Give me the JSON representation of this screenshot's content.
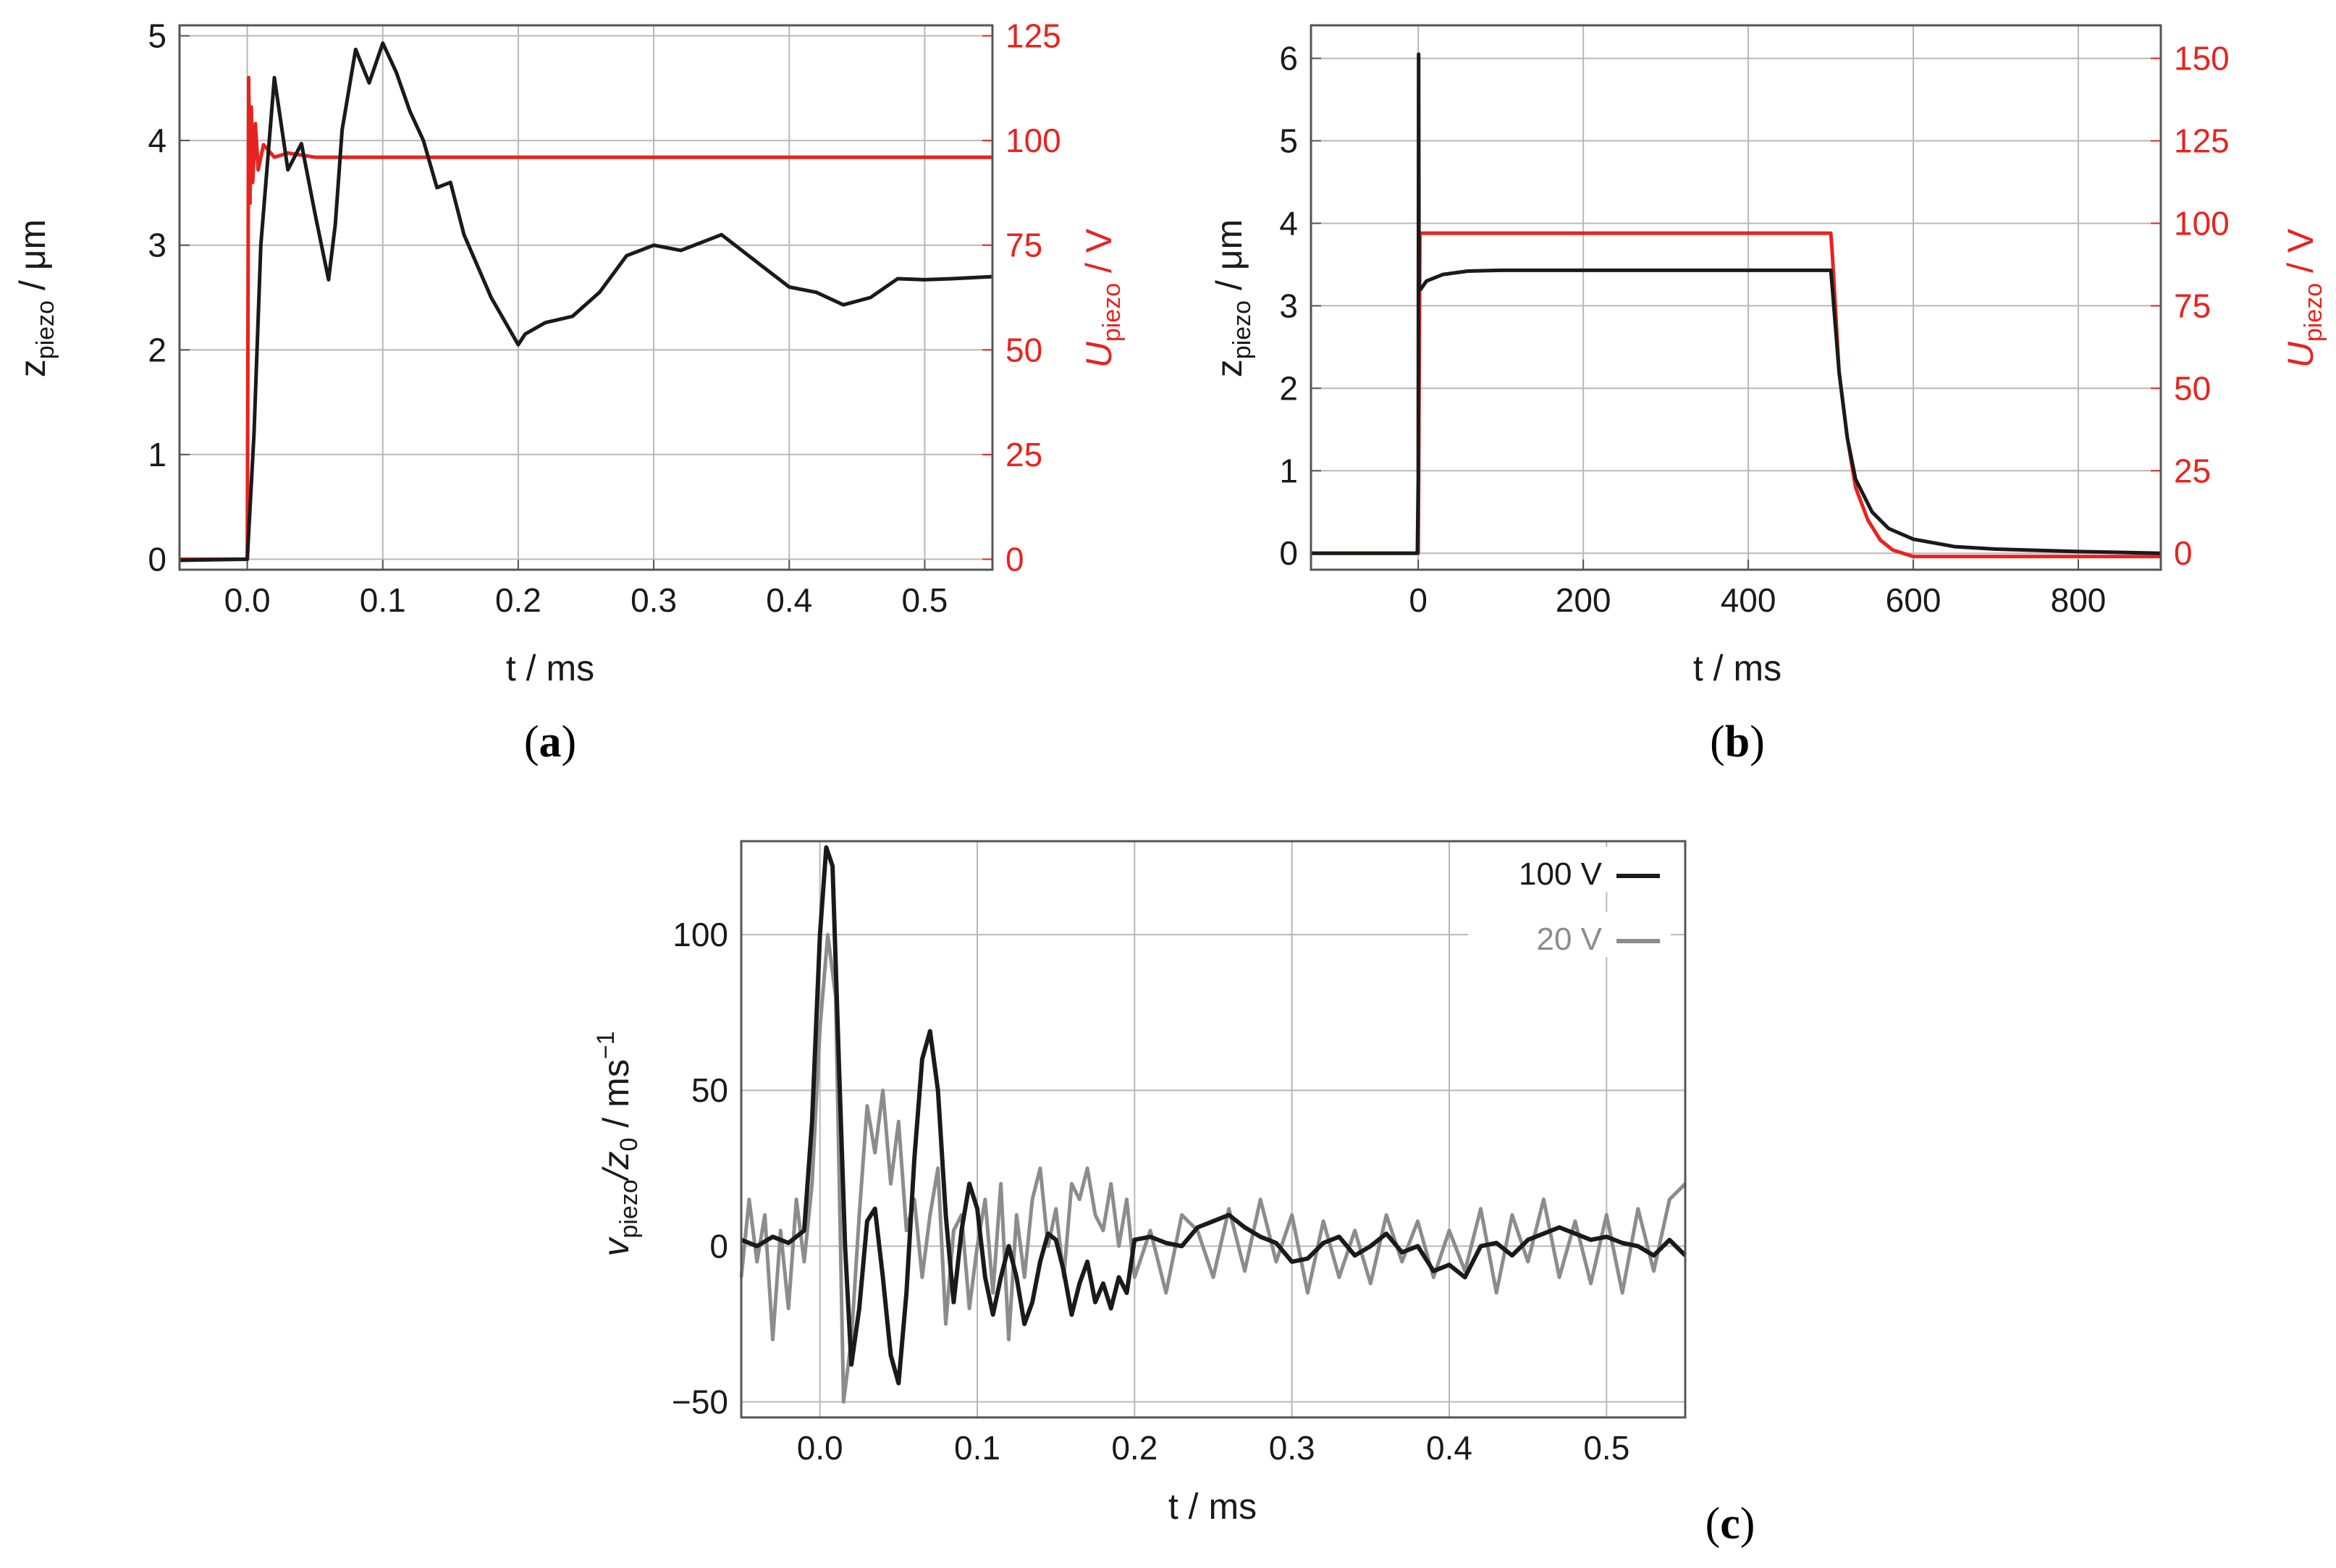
{
  "panels": {
    "a": {
      "letter": "a",
      "open": "(",
      "close": ")"
    },
    "b": {
      "letter": "b",
      "open": "(",
      "close": ")"
    },
    "c": {
      "letter": "c",
      "open": "(",
      "close": ")"
    }
  },
  "colors": {
    "black_series": "#1a1a1a",
    "red_series": "#e8231f",
    "gray_series": "#8c8c8c",
    "grid": "#b8b8b8"
  },
  "chart_data": [
    {
      "id": "a",
      "type": "line",
      "xlabel": "t / ms",
      "ylabel_left": {
        "main": "z",
        "sub": "piezo",
        "unit": " / μm"
      },
      "ylabel_right": {
        "main": "U",
        "sub": "piezo",
        "unit": " / V"
      },
      "xlim": [
        -0.05,
        0.55
      ],
      "ylim_left": [
        -0.1,
        5.1
      ],
      "ylim_right": [
        -2.5,
        127.5
      ],
      "xticks": [
        0.0,
        0.1,
        0.2,
        0.3,
        0.4,
        0.5
      ],
      "xtick_labels": [
        "0.0",
        "0.1",
        "0.2",
        "0.3",
        "0.4",
        "0.5"
      ],
      "yticks_left": [
        0,
        1,
        2,
        3,
        4,
        5
      ],
      "ytick_labels_left": [
        "0",
        "1",
        "2",
        "3",
        "4",
        "5"
      ],
      "yticks_right": [
        0,
        25,
        50,
        75,
        100,
        125
      ],
      "ytick_labels_right": [
        "0",
        "25",
        "50",
        "75",
        "100",
        "125"
      ],
      "grid": true,
      "series": [
        {
          "name": "z_piezo",
          "axis": "left",
          "color": "#1a1a1a",
          "x": [
            -0.05,
            0.0,
            0.005,
            0.01,
            0.02,
            0.03,
            0.04,
            0.05,
            0.06,
            0.065,
            0.07,
            0.08,
            0.09,
            0.1,
            0.11,
            0.12,
            0.13,
            0.14,
            0.15,
            0.16,
            0.18,
            0.2,
            0.205,
            0.22,
            0.24,
            0.26,
            0.28,
            0.3,
            0.32,
            0.35,
            0.38,
            0.4,
            0.42,
            0.44,
            0.46,
            0.48,
            0.5,
            0.52,
            0.55
          ],
          "values": [
            -0.01,
            0.0,
            1.2,
            3.0,
            4.6,
            3.72,
            3.97,
            3.3,
            2.67,
            3.2,
            4.1,
            4.87,
            4.55,
            4.93,
            4.65,
            4.28,
            4.0,
            3.55,
            3.6,
            3.1,
            2.5,
            2.05,
            2.15,
            2.26,
            2.32,
            2.55,
            2.9,
            3.0,
            2.95,
            3.1,
            2.8,
            2.6,
            2.55,
            2.43,
            2.5,
            2.68,
            2.67,
            2.68,
            2.7
          ]
        },
        {
          "name": "U_piezo",
          "axis": "right",
          "color": "#e8231f",
          "x": [
            -0.05,
            0.0,
            0.001,
            0.002,
            0.003,
            0.004,
            0.006,
            0.008,
            0.012,
            0.02,
            0.03,
            0.05,
            0.1,
            0.55
          ],
          "values": [
            0,
            0,
            115,
            85,
            108,
            90,
            104,
            93,
            99,
            96,
            97,
            96,
            96,
            96
          ]
        }
      ]
    },
    {
      "id": "b",
      "type": "line",
      "xlabel": "t / ms",
      "ylabel_left": {
        "main": "z",
        "sub": "piezo",
        "unit": " / μm"
      },
      "ylabel_right": {
        "main": "U",
        "sub": "piezo",
        "unit": " / V"
      },
      "xlim": [
        -130,
        900
      ],
      "ylim_left": [
        -0.2,
        6.4
      ],
      "ylim_right": [
        -5,
        160
      ],
      "xticks": [
        0,
        200,
        400,
        600,
        800
      ],
      "xtick_labels": [
        "0",
        "200",
        "400",
        "600",
        "800"
      ],
      "yticks_left": [
        0,
        1,
        2,
        3,
        4,
        5,
        6
      ],
      "ytick_labels_left": [
        "0",
        "1",
        "2",
        "3",
        "4",
        "5",
        "6"
      ],
      "yticks_right": [
        0,
        25,
        50,
        75,
        100,
        125,
        150
      ],
      "ytick_labels_right": [
        "0",
        "25",
        "50",
        "75",
        "100",
        "125",
        "150"
      ],
      "grid": true,
      "series": [
        {
          "name": "z_piezo",
          "axis": "left",
          "color": "#1a1a1a",
          "x": [
            -130,
            -1,
            0,
            0.5,
            1,
            3,
            10,
            30,
            60,
            100,
            300,
            500,
            502,
            510,
            520,
            530,
            550,
            570,
            600,
            650,
            700,
            800,
            900
          ],
          "values": [
            0,
            0,
            0.9,
            6.05,
            3.25,
            3.2,
            3.3,
            3.38,
            3.42,
            3.43,
            3.43,
            3.43,
            3.2,
            2.2,
            1.4,
            0.9,
            0.5,
            0.3,
            0.17,
            0.08,
            0.05,
            0.02,
            0.0
          ]
        },
        {
          "name": "U_piezo",
          "axis": "right",
          "color": "#e8231f",
          "x": [
            -130,
            0,
            2,
            500,
            502,
            510,
            520,
            530,
            545,
            560,
            575,
            600,
            650,
            900
          ],
          "values": [
            0,
            0,
            97,
            97,
            90,
            55,
            35,
            20,
            10,
            4,
            1,
            -1,
            -1,
            -1
          ]
        }
      ]
    },
    {
      "id": "c",
      "type": "line",
      "xlabel": "t / ms",
      "ylabel": {
        "main": "v",
        "sub1": "piezo",
        "mid": "/z",
        "sub2": "0",
        "unit": " / ms",
        "sup": "−1"
      },
      "xlim": [
        -0.05,
        0.55
      ],
      "ylim": [
        -55,
        130
      ],
      "xticks": [
        0.0,
        0.1,
        0.2,
        0.3,
        0.4,
        0.5
      ],
      "xtick_labels": [
        "0.0",
        "0.1",
        "0.2",
        "0.3",
        "0.4",
        "0.5"
      ],
      "yticks": [
        -50,
        0,
        50,
        100
      ],
      "ytick_labels": [
        "−50",
        "0",
        "50",
        "100"
      ],
      "grid": true,
      "legend": {
        "position": "top-right",
        "entries": [
          {
            "label": "100 V",
            "color": "#1a1a1a"
          },
          {
            "label": "20 V",
            "color": "#8c8c8c"
          }
        ]
      },
      "series": [
        {
          "name": "100 V",
          "color": "#1a1a1a",
          "x": [
            -0.05,
            -0.04,
            -0.03,
            -0.02,
            -0.01,
            -0.005,
            0.0,
            0.004,
            0.008,
            0.012,
            0.016,
            0.02,
            0.025,
            0.03,
            0.035,
            0.04,
            0.045,
            0.05,
            0.055,
            0.06,
            0.065,
            0.07,
            0.075,
            0.08,
            0.085,
            0.09,
            0.095,
            0.1,
            0.105,
            0.11,
            0.115,
            0.12,
            0.125,
            0.13,
            0.135,
            0.14,
            0.145,
            0.15,
            0.155,
            0.16,
            0.165,
            0.17,
            0.175,
            0.18,
            0.185,
            0.19,
            0.195,
            0.2,
            0.21,
            0.22,
            0.23,
            0.24,
            0.25,
            0.26,
            0.27,
            0.28,
            0.29,
            0.3,
            0.31,
            0.32,
            0.33,
            0.34,
            0.35,
            0.36,
            0.37,
            0.38,
            0.39,
            0.4,
            0.41,
            0.42,
            0.43,
            0.44,
            0.45,
            0.46,
            0.47,
            0.48,
            0.49,
            0.5,
            0.51,
            0.52,
            0.53,
            0.54,
            0.55
          ],
          "values": [
            2,
            0,
            3,
            1,
            5,
            40,
            100,
            128,
            122,
            60,
            0,
            -38,
            -20,
            8,
            12,
            -10,
            -35,
            -44,
            -15,
            28,
            60,
            69,
            50,
            10,
            -18,
            5,
            20,
            12,
            -10,
            -22,
            -10,
            0,
            -10,
            -25,
            -18,
            -5,
            4,
            2,
            -8,
            -22,
            -12,
            -5,
            -18,
            -12,
            -20,
            -10,
            -15,
            2,
            3,
            1,
            0,
            6,
            8,
            10,
            6,
            3,
            1,
            -5,
            -4,
            1,
            3,
            -3,
            0,
            4,
            -2,
            0,
            -8,
            -6,
            -10,
            0,
            1,
            -3,
            2,
            4,
            6,
            4,
            2,
            3,
            1,
            0,
            -3,
            2,
            -3
          ]
        },
        {
          "name": "20 V",
          "color": "#8c8c8c",
          "x": [
            -0.05,
            -0.045,
            -0.04,
            -0.035,
            -0.03,
            -0.025,
            -0.02,
            -0.015,
            -0.01,
            -0.005,
            0.0,
            0.005,
            0.01,
            0.015,
            0.02,
            0.025,
            0.03,
            0.035,
            0.04,
            0.045,
            0.05,
            0.055,
            0.06,
            0.065,
            0.07,
            0.075,
            0.08,
            0.085,
            0.09,
            0.095,
            0.1,
            0.105,
            0.11,
            0.115,
            0.12,
            0.125,
            0.13,
            0.135,
            0.14,
            0.145,
            0.15,
            0.155,
            0.16,
            0.165,
            0.17,
            0.175,
            0.18,
            0.185,
            0.19,
            0.195,
            0.2,
            0.21,
            0.22,
            0.23,
            0.24,
            0.25,
            0.26,
            0.27,
            0.28,
            0.29,
            0.3,
            0.31,
            0.32,
            0.33,
            0.34,
            0.35,
            0.36,
            0.37,
            0.38,
            0.39,
            0.4,
            0.41,
            0.42,
            0.43,
            0.44,
            0.45,
            0.46,
            0.47,
            0.48,
            0.49,
            0.5,
            0.51,
            0.52,
            0.53,
            0.54,
            0.55
          ],
          "values": [
            -10,
            15,
            -5,
            10,
            -30,
            5,
            -20,
            15,
            -5,
            20,
            70,
            100,
            80,
            -50,
            -30,
            10,
            45,
            30,
            50,
            20,
            40,
            5,
            15,
            -10,
            10,
            25,
            -25,
            5,
            10,
            -20,
            0,
            15,
            -15,
            20,
            -30,
            10,
            -10,
            15,
            25,
            0,
            12,
            -10,
            20,
            15,
            25,
            10,
            5,
            20,
            0,
            15,
            -10,
            5,
            -15,
            10,
            5,
            -10,
            12,
            -8,
            15,
            -5,
            10,
            -15,
            8,
            -10,
            5,
            -12,
            10,
            -5,
            8,
            -10,
            5,
            -8,
            12,
            -15,
            10,
            -5,
            15,
            -10,
            8,
            -12,
            10,
            -15,
            12,
            -8,
            15,
            20
          ]
        }
      ]
    }
  ]
}
